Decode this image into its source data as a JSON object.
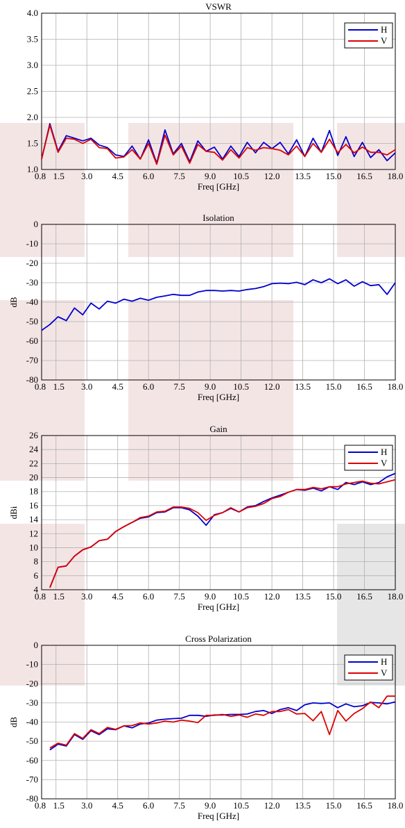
{
  "colors": {
    "H": "#0000cc",
    "V": "#dd0000",
    "grid": "#b0b0b0",
    "shade_pink": "#f3e3e3",
    "shade_gray": "#e3e3e3"
  },
  "chart_data": [
    {
      "type": "line",
      "title": "VSWR",
      "xlabel": "Freq [GHz]",
      "ylabel": "",
      "xlim": [
        0.8,
        18.0
      ],
      "ylim": [
        1.0,
        4.0
      ],
      "xticks": [
        "0.8",
        "1.5",
        "3.0",
        "4.5",
        "6.0",
        "7.5",
        "9.0",
        "10.5",
        "12.0",
        "13.5",
        "15.0",
        "16.5",
        "18.0"
      ],
      "yticks": [
        "1.0",
        "1.5",
        "2.0",
        "2.5",
        "3.0",
        "3.5",
        "4.0"
      ],
      "grid": true,
      "legend": "top-right",
      "x": [
        0.8,
        1.2,
        1.6,
        2.0,
        2.4,
        2.8,
        3.2,
        3.6,
        4.0,
        4.4,
        4.8,
        5.2,
        5.6,
        6.0,
        6.4,
        6.8,
        7.2,
        7.6,
        8.0,
        8.4,
        8.8,
        9.2,
        9.6,
        10.0,
        10.4,
        10.8,
        11.2,
        11.6,
        12.0,
        12.4,
        12.8,
        13.2,
        13.6,
        14.0,
        14.4,
        14.8,
        15.2,
        15.6,
        16.0,
        16.4,
        16.8,
        17.2,
        17.6,
        18.0
      ],
      "series": [
        {
          "name": "H",
          "values": [
            1.2,
            1.88,
            1.35,
            1.65,
            1.6,
            1.55,
            1.6,
            1.47,
            1.42,
            1.28,
            1.25,
            1.45,
            1.2,
            1.57,
            1.12,
            1.76,
            1.3,
            1.5,
            1.15,
            1.55,
            1.35,
            1.43,
            1.2,
            1.45,
            1.25,
            1.52,
            1.32,
            1.52,
            1.4,
            1.52,
            1.3,
            1.57,
            1.25,
            1.6,
            1.33,
            1.75,
            1.27,
            1.63,
            1.25,
            1.52,
            1.23,
            1.38,
            1.17,
            1.32
          ]
        },
        {
          "name": "V",
          "values": [
            1.2,
            1.85,
            1.33,
            1.6,
            1.58,
            1.5,
            1.58,
            1.42,
            1.4,
            1.22,
            1.24,
            1.38,
            1.2,
            1.5,
            1.1,
            1.66,
            1.28,
            1.45,
            1.12,
            1.48,
            1.35,
            1.33,
            1.18,
            1.38,
            1.22,
            1.42,
            1.37,
            1.42,
            1.4,
            1.37,
            1.28,
            1.45,
            1.25,
            1.5,
            1.33,
            1.58,
            1.32,
            1.48,
            1.32,
            1.43,
            1.33,
            1.33,
            1.28,
            1.38
          ]
        }
      ]
    },
    {
      "type": "line",
      "title": "Isolation",
      "xlabel": "Freq [GHz]",
      "ylabel": "dB",
      "xlim": [
        0.8,
        18.0
      ],
      "ylim": [
        -80,
        0
      ],
      "xticks": [
        "0.8",
        "1.5",
        "3.0",
        "4.5",
        "6.0",
        "7.5",
        "9.0",
        "10.5",
        "12.0",
        "13.5",
        "15.0",
        "16.5",
        "18.0"
      ],
      "yticks": [
        "0",
        "-10",
        "-20",
        "-30",
        "-40",
        "-50",
        "-60",
        "-70",
        "-80"
      ],
      "grid": true,
      "legend": "",
      "x": [
        0.8,
        1.2,
        1.6,
        2.0,
        2.4,
        2.8,
        3.2,
        3.6,
        4.0,
        4.4,
        4.8,
        5.2,
        5.6,
        6.0,
        6.4,
        6.8,
        7.2,
        7.6,
        8.0,
        8.4,
        8.8,
        9.2,
        9.6,
        10.0,
        10.4,
        10.8,
        11.2,
        11.6,
        12.0,
        12.4,
        12.8,
        13.2,
        13.6,
        14.0,
        14.4,
        14.8,
        15.2,
        15.6,
        16.0,
        16.4,
        16.8,
        17.2,
        17.6,
        18.0
      ],
      "series": [
        {
          "name": "",
          "values": [
            -54.5,
            -51.5,
            -47.5,
            -49.5,
            -43,
            -46.5,
            -40.5,
            -43.5,
            -39.5,
            -40.5,
            -38.5,
            -39.5,
            -38,
            -39,
            -37.5,
            -36.8,
            -36,
            -36.5,
            -36.5,
            -34.8,
            -34,
            -34,
            -34.3,
            -34,
            -34.3,
            -33.5,
            -33,
            -32,
            -30.5,
            -30.2,
            -30.5,
            -29.8,
            -31,
            -28.5,
            -30,
            -28,
            -30.5,
            -28.5,
            -31.8,
            -29.5,
            -31.5,
            -31,
            -36,
            -30
          ]
        }
      ]
    },
    {
      "type": "line",
      "title": "Gain",
      "xlabel": "Freq [GHz]",
      "ylabel": "dBi",
      "xlim": [
        0.8,
        18.0
      ],
      "ylim": [
        4,
        26
      ],
      "xticks": [
        "0.8",
        "1.5",
        "3.0",
        "4.5",
        "6.0",
        "7.5",
        "9.0",
        "10.5",
        "12.0",
        "13.5",
        "15.0",
        "16.5",
        "18.0"
      ],
      "yticks": [
        "4",
        "6",
        "8",
        "10",
        "12",
        "14",
        "16",
        "18",
        "20",
        "22",
        "24",
        "26"
      ],
      "grid": true,
      "legend": "top-right",
      "x": [
        1.2,
        1.6,
        2.0,
        2.4,
        2.8,
        3.2,
        3.6,
        4.0,
        4.4,
        4.8,
        5.2,
        5.6,
        6.0,
        6.4,
        6.8,
        7.2,
        7.6,
        8.0,
        8.4,
        8.8,
        9.2,
        9.6,
        10.0,
        10.4,
        10.8,
        11.2,
        11.6,
        12.0,
        12.4,
        12.8,
        13.2,
        13.6,
        14.0,
        14.4,
        14.8,
        15.2,
        15.6,
        16.0,
        16.4,
        16.8,
        17.2,
        17.6,
        18.0
      ],
      "series": [
        {
          "name": "H",
          "values": [
            4.3,
            7.2,
            7.4,
            8.8,
            9.7,
            10.1,
            11.0,
            11.2,
            12.3,
            13.0,
            13.6,
            14.2,
            14.4,
            15.0,
            15.1,
            15.7,
            15.7,
            15.4,
            14.5,
            13.2,
            14.7,
            15.0,
            15.6,
            15.1,
            15.8,
            16.0,
            16.6,
            17.1,
            17.5,
            17.9,
            18.3,
            18.2,
            18.5,
            18.1,
            18.7,
            18.3,
            19.3,
            19.0,
            19.4,
            19.0,
            19.3,
            20.1,
            20.6
          ]
        },
        {
          "name": "V",
          "values": [
            4.3,
            7.2,
            7.4,
            8.8,
            9.7,
            10.1,
            11.0,
            11.2,
            12.3,
            13.0,
            13.6,
            14.3,
            14.5,
            15.1,
            15.2,
            15.8,
            15.8,
            15.6,
            15.0,
            13.9,
            14.6,
            15.0,
            15.7,
            15.1,
            15.7,
            15.9,
            16.3,
            17.0,
            17.3,
            17.9,
            18.3,
            18.3,
            18.6,
            18.4,
            18.7,
            18.7,
            19.1,
            19.3,
            19.5,
            19.2,
            19.1,
            19.4,
            19.7
          ]
        }
      ]
    },
    {
      "type": "line",
      "title": "Cross Polarization",
      "xlabel": "Freq [GHz]",
      "ylabel": "dB",
      "xlim": [
        0.8,
        18.0
      ],
      "ylim": [
        -80,
        0
      ],
      "xticks": [
        "0.8",
        "1.5",
        "3.0",
        "4.5",
        "6.0",
        "7.5",
        "9.0",
        "10.5",
        "12.0",
        "13.5",
        "15.0",
        "16.5",
        "18.0"
      ],
      "yticks": [
        "0",
        "-10",
        "-20",
        "-30",
        "-40",
        "-50",
        "-60",
        "-70",
        "-80"
      ],
      "grid": true,
      "legend": "top-right",
      "x": [
        1.2,
        1.6,
        2.0,
        2.4,
        2.8,
        3.2,
        3.6,
        4.0,
        4.4,
        4.8,
        5.2,
        5.6,
        6.0,
        6.4,
        6.8,
        7.2,
        7.6,
        8.0,
        8.4,
        8.8,
        9.2,
        9.6,
        10.0,
        10.4,
        10.8,
        11.2,
        11.6,
        12.0,
        12.4,
        12.8,
        13.2,
        13.6,
        14.0,
        14.4,
        14.8,
        15.2,
        15.6,
        16.0,
        16.4,
        16.8,
        17.2,
        17.6,
        18.0
      ],
      "series": [
        {
          "name": "H",
          "values": [
            -54.5,
            -51.5,
            -52.5,
            -46.5,
            -49,
            -44.5,
            -46.5,
            -43.5,
            -44,
            -42,
            -43,
            -41,
            -40.5,
            -39,
            -38.5,
            -38.2,
            -38,
            -36.5,
            -36.5,
            -37,
            -36.3,
            -36.3,
            -36,
            -36,
            -35.8,
            -34.5,
            -34,
            -35.5,
            -33.5,
            -32.5,
            -34,
            -31,
            -30,
            -30.3,
            -30,
            -32.5,
            -30.5,
            -32,
            -31.5,
            -29.8,
            -30,
            -30.5,
            -29.5
          ]
        },
        {
          "name": "V",
          "values": [
            -53.5,
            -51,
            -52,
            -46,
            -48.5,
            -44,
            -46,
            -42.8,
            -43.8,
            -42,
            -41.8,
            -40.5,
            -41,
            -40.5,
            -39.5,
            -40,
            -39,
            -39.5,
            -40.3,
            -36.5,
            -36.5,
            -36,
            -37,
            -36.3,
            -37.5,
            -35.8,
            -36.5,
            -34.5,
            -34.5,
            -33.5,
            -35.8,
            -35.5,
            -39.3,
            -34.5,
            -46.5,
            -34,
            -39.5,
            -35.5,
            -33,
            -29.5,
            -32.5,
            -26.5,
            -26.5
          ]
        }
      ]
    }
  ]
}
